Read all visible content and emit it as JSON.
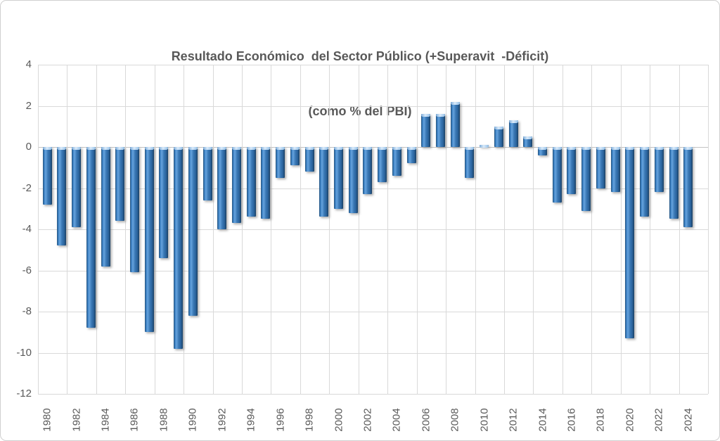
{
  "chart_data": {
    "type": "bar",
    "title": "Resultado Económico  del Sector Público (+Superavit  -Déficit)",
    "subtitle": "(como % del PBI)",
    "xlabel": "",
    "ylabel": "",
    "ylim": [
      -12,
      4
    ],
    "ytick_interval": 2,
    "y_ticks": [
      4,
      2,
      0,
      -2,
      -4,
      -6,
      -8,
      -10,
      -12
    ],
    "x_tick_years": [
      1980,
      1982,
      1984,
      1986,
      1988,
      1990,
      1992,
      1994,
      1996,
      1998,
      2000,
      2002,
      2004,
      2006,
      2008,
      2010,
      2012,
      2014,
      2016,
      2018,
      2020,
      2022,
      2024
    ],
    "grid": true,
    "legend_position": "none",
    "categories": [
      1980,
      1981,
      1982,
      1983,
      1984,
      1985,
      1986,
      1987,
      1988,
      1989,
      1990,
      1991,
      1992,
      1993,
      1994,
      1995,
      1996,
      1997,
      1998,
      1999,
      2000,
      2001,
      2002,
      2003,
      2004,
      2005,
      2006,
      2007,
      2008,
      2009,
      2010,
      2011,
      2012,
      2013,
      2014,
      2015,
      2016,
      2017,
      2018,
      2019,
      2020,
      2021,
      2022,
      2023,
      2024
    ],
    "values": [
      -2.8,
      -4.8,
      -3.9,
      -8.8,
      -5.8,
      -3.6,
      -6.1,
      -9.0,
      -5.4,
      -9.8,
      -8.2,
      -2.6,
      -4.0,
      -3.7,
      -3.4,
      -3.5,
      -1.5,
      -0.9,
      -1.2,
      -3.4,
      -3.0,
      -3.2,
      -2.3,
      -1.7,
      -1.4,
      -0.8,
      1.6,
      1.6,
      2.2,
      -1.5,
      0.1,
      1.0,
      1.3,
      0.5,
      -0.4,
      -2.7,
      -2.3,
      -3.1,
      -2.0,
      -2.2,
      -9.3,
      -3.4,
      -2.2,
      -3.5,
      -3.9
    ],
    "colors": {
      "bar_main": "#2E75B6",
      "bar_dark": "#1A4063",
      "bar_highlight": "#D9EAF9",
      "gridline": "#D9D9D9",
      "text": "#595959",
      "background": "#FFFFFF"
    }
  }
}
